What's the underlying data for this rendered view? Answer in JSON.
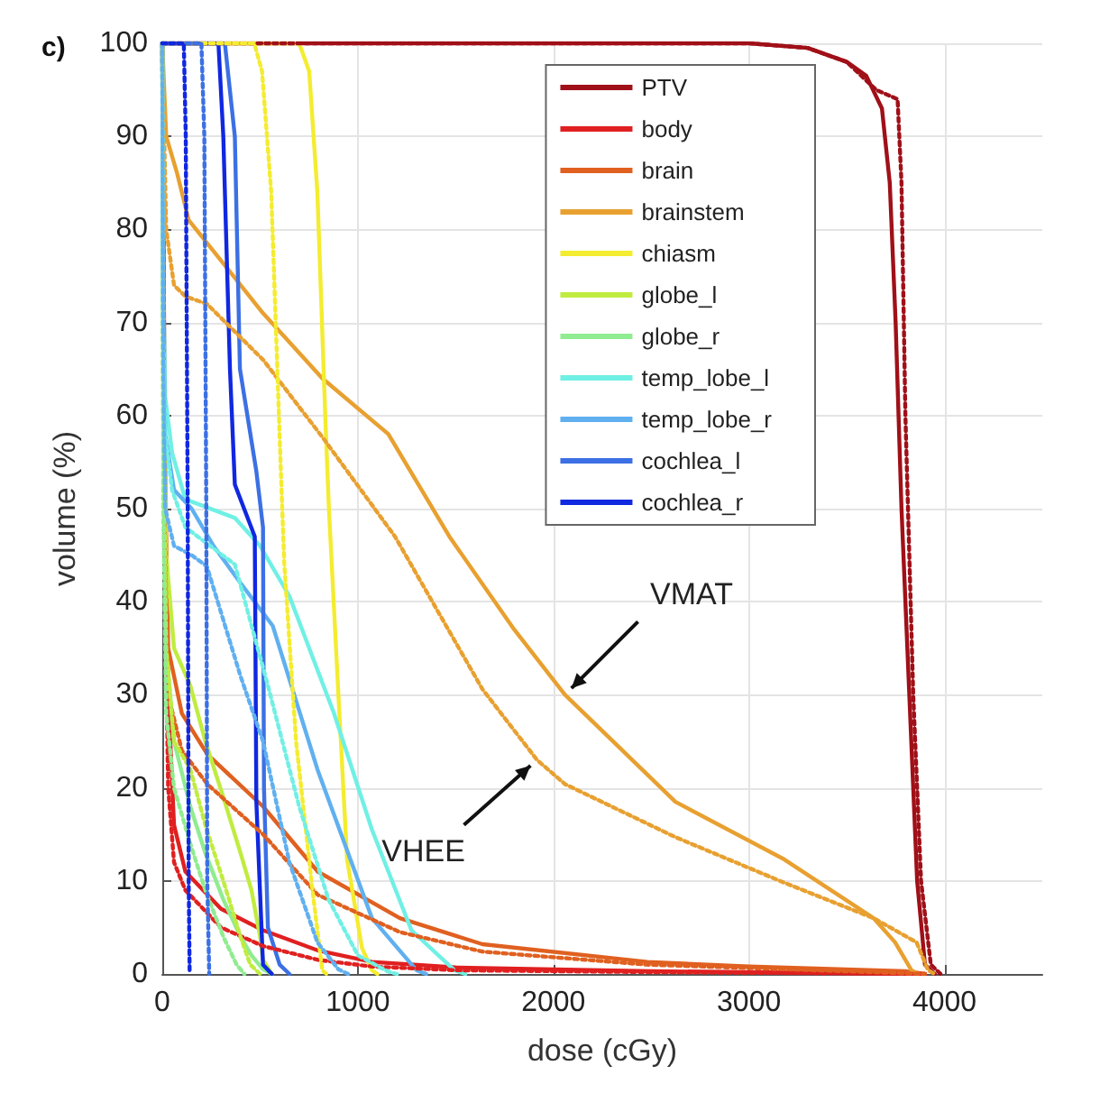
{
  "chart_data": {
    "type": "line",
    "title": "c)",
    "xlabel": "dose (cGy)",
    "ylabel": "volume (%)",
    "xlim": [
      0,
      4500
    ],
    "ylim": [
      0,
      100
    ],
    "xticks": [
      0,
      1000,
      2000,
      3000,
      4000
    ],
    "yticks": [
      0,
      10,
      20,
      30,
      40,
      50,
      60,
      70,
      80,
      90,
      100
    ],
    "grid": true,
    "legend": "top right",
    "marker": "none",
    "annotations": [
      {
        "text": "VMAT",
        "x": 2059,
        "y": 30
      },
      {
        "text": "VHEE",
        "x": 1916,
        "y": 23
      }
    ],
    "series": [
      {
        "name": "PTV",
        "color": "#a01018",
        "line_style": "solid",
        "x": [
          0,
          3000,
          3300,
          3500,
          3600,
          3680,
          3720,
          3750,
          3780,
          3820,
          3860,
          3900,
          3950
        ],
        "values": [
          100,
          100,
          99.5,
          98,
          96.5,
          93,
          85,
          70,
          50,
          30,
          10,
          1,
          0
        ]
      },
      {
        "name": "body",
        "color": "#e02020",
        "line_style": "solid",
        "x": [
          0,
          15,
          30,
          60,
          118,
          300,
          515,
          800,
          1072,
          1500,
          2500,
          3900
        ],
        "values": [
          100,
          50,
          30,
          16,
          11,
          7,
          4.7,
          2.5,
          1.3,
          0.7,
          0.3,
          0
        ]
      },
      {
        "name": "brain",
        "color": "#e06020",
        "line_style": "solid",
        "x": [
          0,
          10,
          30,
          100,
          230,
          515,
          795,
          1215,
          1637,
          2480,
          3000,
          3800,
          3900
        ],
        "values": [
          100,
          60,
          35,
          28,
          23.6,
          18,
          11,
          6,
          3.2,
          1.3,
          0.8,
          0.3,
          0
        ]
      },
      {
        "name": "brainstem",
        "color": "#e8a030",
        "line_style": "solid",
        "x": [
          0,
          20,
          76,
          135,
          515,
          818,
          1156,
          1468,
          1800,
          2059,
          2624,
          3181,
          3637,
          3747,
          3831,
          3870
        ],
        "values": [
          100,
          90,
          86,
          81,
          71,
          64,
          58,
          47,
          37,
          30,
          18.5,
          12.3,
          6,
          3.4,
          0.4,
          0
        ]
      },
      {
        "name": "chiasm",
        "color": "#f4ec30",
        "line_style": "solid",
        "x": [
          0,
          700,
          751,
          793,
          835,
          852,
          903,
          945,
          1021,
          1072,
          1100
        ],
        "values": [
          100,
          100,
          97,
          84,
          59,
          50,
          29,
          12.3,
          2.8,
          0.4,
          0
        ]
      },
      {
        "name": "globe_l",
        "color": "#c0ec40",
        "line_style": "solid",
        "x": [
          0,
          5,
          20,
          60,
          143,
          220,
          312,
          400,
          456,
          500,
          515,
          560
        ],
        "values": [
          100,
          70,
          45,
          35,
          31,
          25,
          19,
          13,
          9,
          4,
          1.5,
          0
        ]
      },
      {
        "name": "globe_r",
        "color": "#90ec90",
        "line_style": "solid",
        "x": [
          0,
          5,
          20,
          60,
          143,
          220,
          312,
          400,
          456,
          515,
          560
        ],
        "values": [
          100,
          60,
          35,
          25,
          18,
          13,
          8,
          4,
          2,
          0.5,
          0
        ]
      },
      {
        "name": "temp_lobe_l",
        "color": "#70f0e4",
        "line_style": "solid",
        "x": [
          0,
          5,
          15,
          50,
          118,
          371,
          500,
          650,
          878,
          1072,
          1274,
          1494,
          1550
        ],
        "values": [
          100,
          75,
          62,
          56,
          51,
          49,
          46,
          40.6,
          28,
          15.5,
          4.7,
          0.4,
          0
        ]
      },
      {
        "name": "temp_lobe_r",
        "color": "#60b0f0",
        "line_style": "solid",
        "x": [
          0,
          5,
          15,
          60,
          150,
          262,
          400,
          565,
          793,
          1072,
          1300,
          1350
        ],
        "values": [
          100,
          70,
          58,
          52,
          50,
          46,
          42,
          37.4,
          22,
          6,
          0.4,
          0
        ]
      },
      {
        "name": "cochlea_l",
        "color": "#3c70e4",
        "line_style": "solid",
        "x": [
          0,
          320,
          371,
          397,
          481,
          515,
          520,
          540,
          600,
          650
        ],
        "values": [
          100,
          100,
          90,
          65,
          54,
          48,
          20,
          5,
          1,
          0
        ]
      },
      {
        "name": "cochlea_r",
        "color": "#1028e0",
        "line_style": "solid",
        "x": [
          0,
          287,
          312,
          346,
          371,
          473,
          481,
          515,
          560
        ],
        "values": [
          100,
          100,
          90,
          65,
          52.6,
          47,
          18.5,
          1,
          0
        ]
      },
      {
        "color": "#a01018",
        "line_style": "dotted",
        "x": [
          0,
          3000,
          3300,
          3500,
          3650,
          3760,
          3780,
          3800,
          3840,
          3880,
          3930,
          3980
        ],
        "values": [
          100,
          100,
          99.5,
          98,
          95,
          94,
          85,
          60,
          30,
          10,
          1,
          0
        ]
      },
      {
        "color": "#e02020",
        "line_style": "dotted",
        "x": [
          0,
          15,
          30,
          60,
          118,
          300,
          515,
          800,
          1072,
          1500,
          2500,
          3900
        ],
        "values": [
          100,
          40,
          20,
          12,
          9,
          5,
          3,
          1.5,
          0.8,
          0.4,
          0.2,
          0
        ]
      },
      {
        "color": "#e06020",
        "line_style": "dotted",
        "x": [
          0,
          10,
          30,
          100,
          230,
          515,
          795,
          1215,
          1637,
          2480,
          3900
        ],
        "values": [
          100,
          50,
          30,
          24,
          20.4,
          15,
          8.5,
          4.5,
          2.4,
          1,
          0
        ]
      },
      {
        "color": "#e8a030",
        "line_style": "dotted",
        "x": [
          0,
          20,
          60,
          118,
          228,
          515,
          818,
          1190,
          1637,
          1916,
          2059,
          2624,
          3181,
          3637,
          3857,
          3916,
          3950
        ],
        "values": [
          100,
          80,
          74,
          72.8,
          72,
          66,
          57.7,
          47,
          30.6,
          23,
          20.4,
          14.7,
          9.8,
          6,
          3.4,
          0.4,
          0
        ]
      },
      {
        "color": "#f4ec30",
        "line_style": "dotted",
        "x": [
          0,
          470,
          510,
          557,
          608,
          624,
          684,
          768,
          818,
          840
        ],
        "values": [
          100,
          100,
          97,
          84,
          53,
          44,
          25,
          9,
          0.4,
          0
        ]
      },
      {
        "color": "#c0ec40",
        "line_style": "dotted",
        "x": [
          0,
          5,
          20,
          60,
          143,
          220,
          312,
          400,
          450,
          500
        ],
        "values": [
          100,
          60,
          35,
          25,
          22,
          16,
          10,
          4,
          1,
          0
        ]
      },
      {
        "color": "#90ec90",
        "line_style": "dotted",
        "x": [
          0,
          5,
          20,
          60,
          143,
          220,
          312,
          380,
          420
        ],
        "values": [
          100,
          50,
          28,
          20,
          14,
          9,
          4,
          1,
          0
        ]
      },
      {
        "color": "#70f0e4",
        "line_style": "dotted",
        "x": [
          0,
          5,
          15,
          50,
          118,
          371,
          540,
          700,
          850,
          1000,
          1150,
          1200
        ],
        "values": [
          100,
          70,
          58,
          52,
          48,
          44,
          31,
          18,
          8,
          2,
          0.3,
          0
        ]
      },
      {
        "color": "#60b0f0",
        "line_style": "dotted",
        "x": [
          0,
          5,
          15,
          60,
          150,
          228,
          400,
          515,
          650,
          793,
          900,
          950
        ],
        "values": [
          100,
          65,
          50,
          46,
          45,
          43.8,
          32,
          25,
          12,
          3.4,
          0.5,
          0
        ]
      },
      {
        "color": "#3c70e4",
        "line_style": "dotted",
        "x": [
          0,
          200,
          215,
          225,
          230,
          240
        ],
        "values": [
          100,
          100,
          90,
          50,
          10,
          0
        ]
      },
      {
        "color": "#1028e0",
        "line_style": "dotted",
        "x": [
          0,
          110,
          120,
          130,
          135,
          140
        ],
        "values": [
          100,
          100,
          90,
          50,
          10,
          0
        ]
      }
    ]
  }
}
